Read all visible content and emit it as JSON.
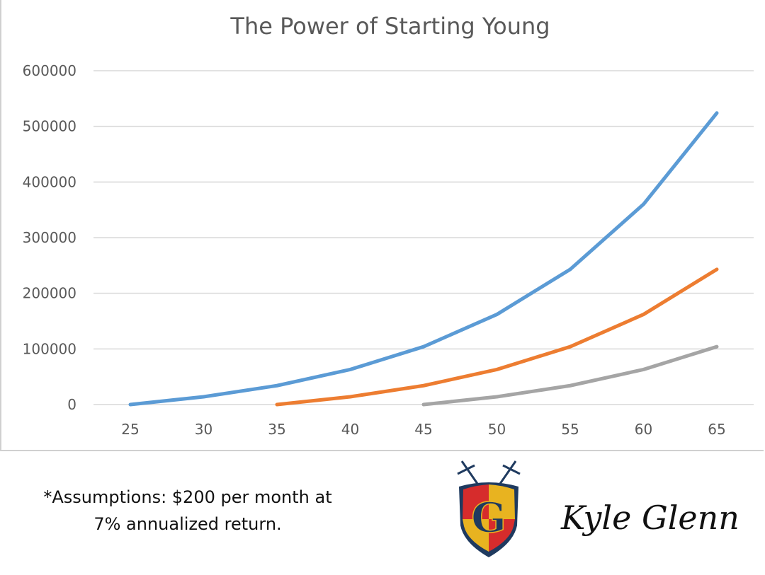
{
  "chart_data": {
    "type": "line",
    "title": "The Power of Starting Young",
    "x": [
      25,
      30,
      35,
      40,
      45,
      50,
      55,
      60,
      65
    ],
    "ylim": [
      0,
      600000
    ],
    "yticks": [
      0,
      100000,
      200000,
      300000,
      400000,
      500000,
      600000
    ],
    "grid": true,
    "series": [
      {
        "color": "#5b9bd5",
        "values": [
          0,
          14000,
          34000,
          63000,
          104000,
          162000,
          243000,
          360000,
          524000
        ]
      },
      {
        "color": "#ed7d31",
        "values": [
          null,
          null,
          0,
          14000,
          34000,
          63000,
          104000,
          162000,
          243000
        ]
      },
      {
        "color": "#a5a5a5",
        "values": [
          null,
          null,
          null,
          null,
          0,
          14000,
          34000,
          63000,
          104000
        ]
      }
    ]
  },
  "footer": {
    "assumptions_line1": "*Assumptions: $200 per month at",
    "assumptions_line2": "7% annualized return.",
    "signature": "Kyle Glenn",
    "logo_letter": "G"
  }
}
